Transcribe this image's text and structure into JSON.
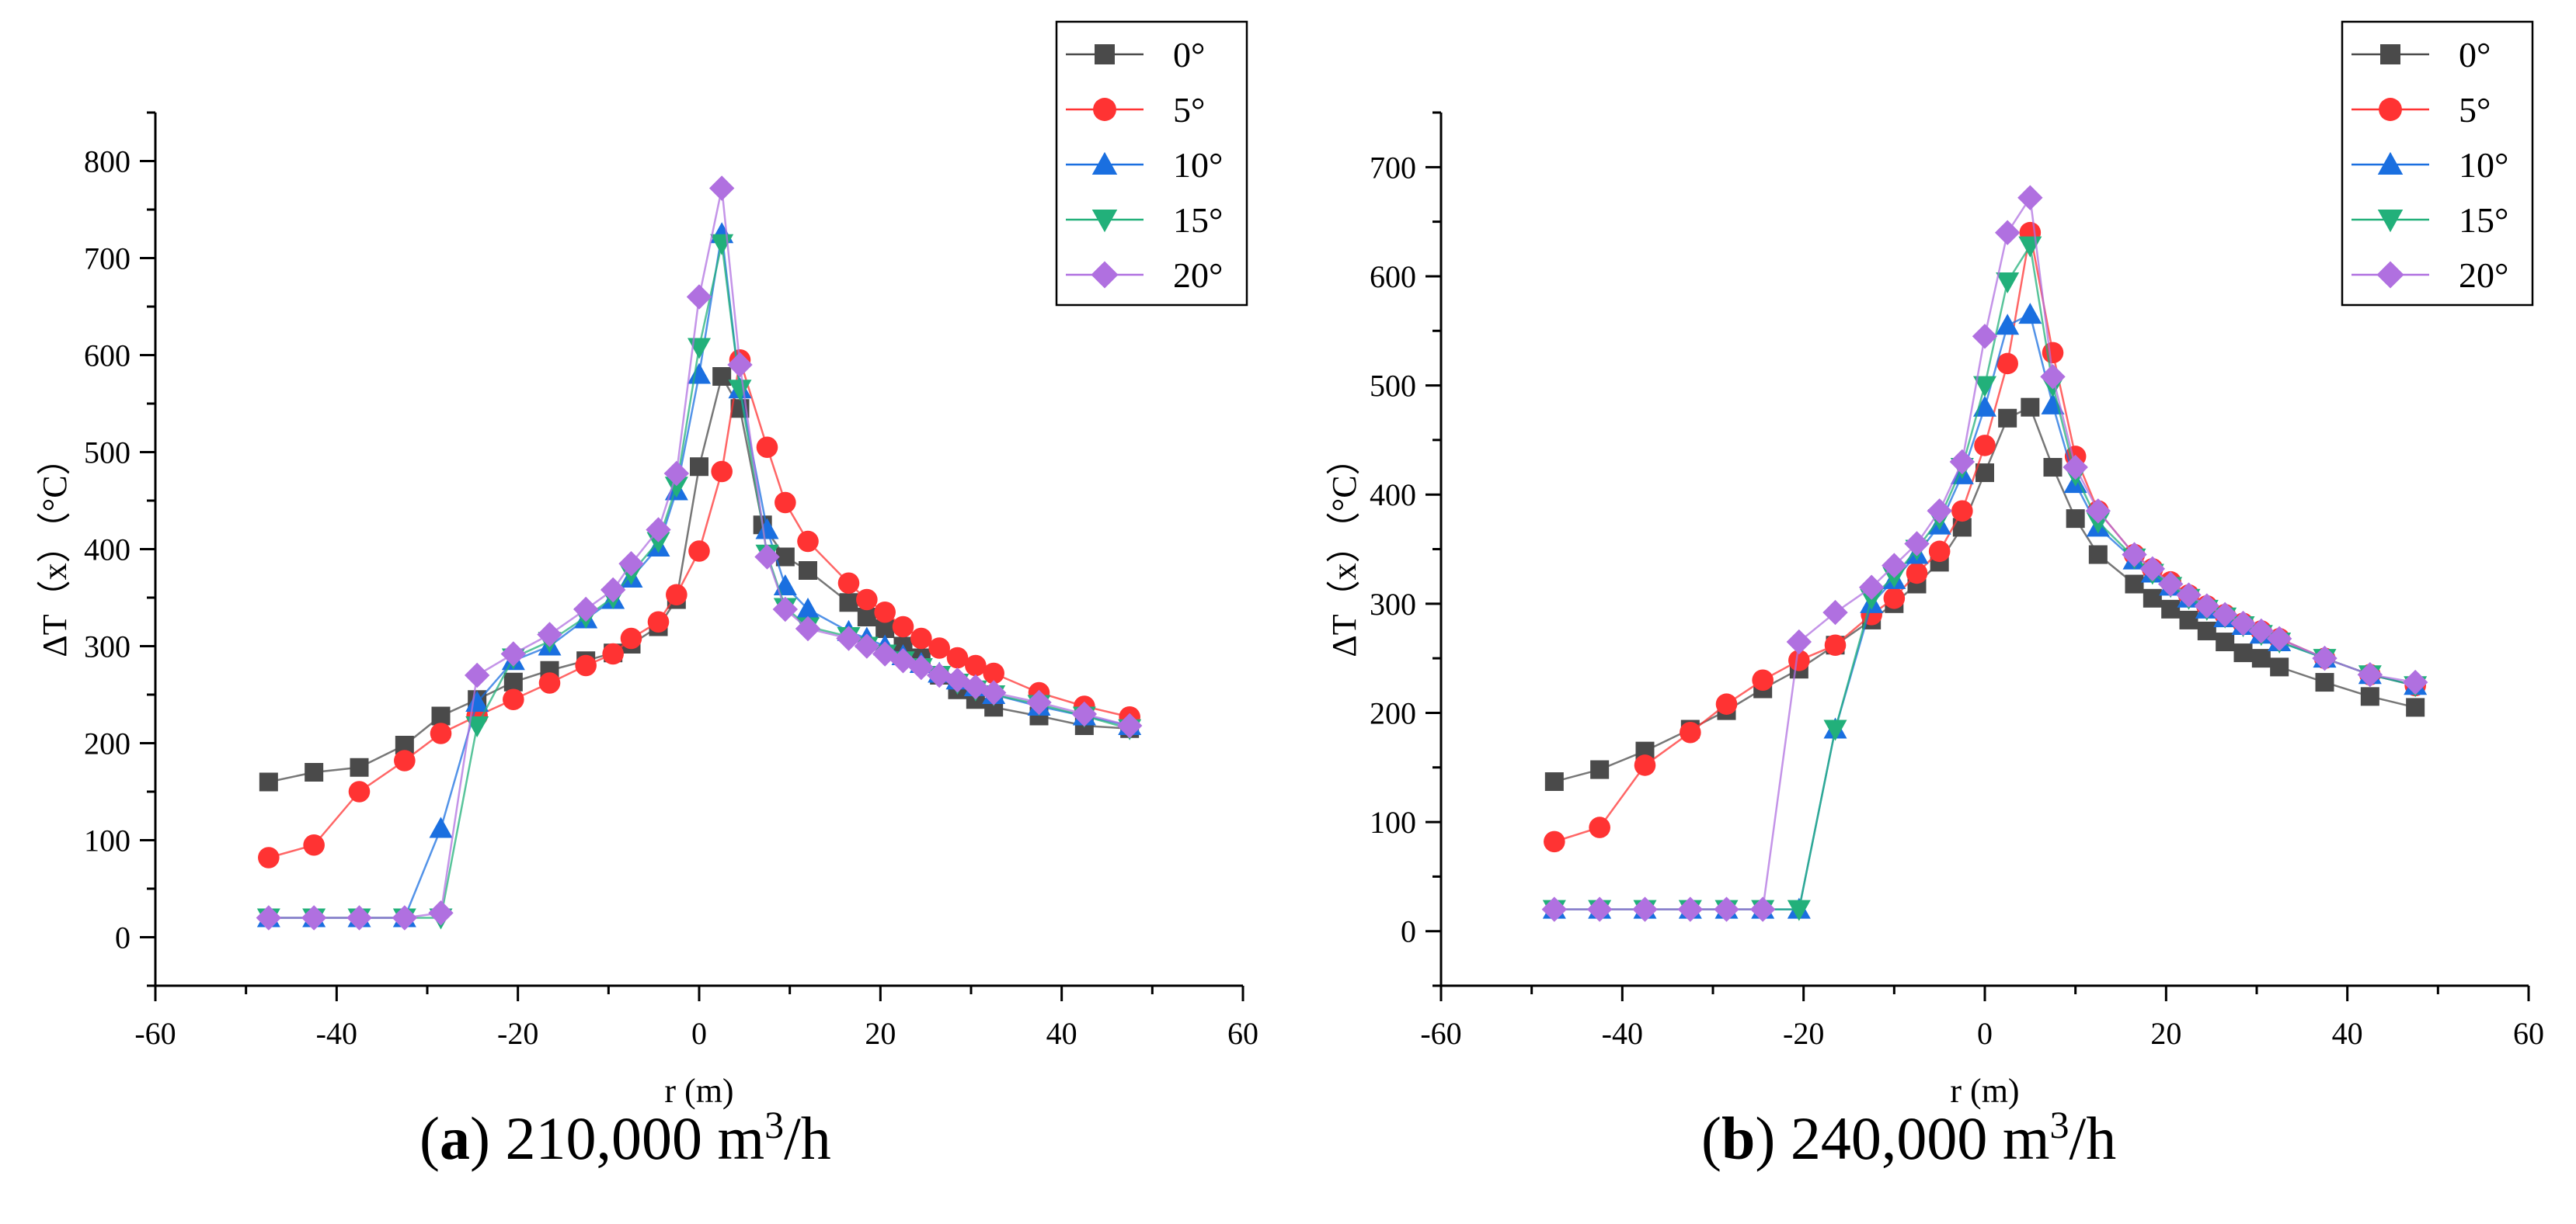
{
  "chart_data": [
    {
      "type": "scatter",
      "panel": "a",
      "title": "",
      "xlabel": "r (m)",
      "ylabel": "ΔT（x）（°C）",
      "xlim": [
        -60,
        60
      ],
      "ylim": [
        -50,
        850
      ],
      "xticks": [
        -60,
        -40,
        -20,
        0,
        20,
        40,
        60
      ],
      "yticks": [
        0,
        100,
        200,
        300,
        400,
        500,
        600,
        700,
        800
      ],
      "grid": false,
      "legend": "top-right",
      "series": [
        {
          "name": "0°",
          "color": "#4a4a4a",
          "marker": "square",
          "x": [
            -47.5,
            -42.5,
            -37.5,
            -32.5,
            -28.5,
            -24.5,
            -20.5,
            -16.5,
            -12.5,
            -9.5,
            -7.5,
            -4.5,
            -2.5,
            0,
            2.5,
            4.5,
            7,
            9.5,
            12,
            16.5,
            18.5,
            20.5,
            22.5,
            24.5,
            26.5,
            28.5,
            30.5,
            32.5,
            37.5,
            42.5,
            47.5
          ],
          "y": [
            160,
            170,
            175,
            198,
            228,
            245,
            263,
            275,
            285,
            293,
            302,
            320,
            348,
            485,
            578,
            545,
            425,
            392,
            378,
            345,
            330,
            318,
            300,
            288,
            270,
            255,
            245,
            237,
            228,
            218,
            215
          ]
        },
        {
          "name": "5°",
          "color": "#ff3333",
          "marker": "circle",
          "x": [
            -47.5,
            -42.5,
            -37.5,
            -32.5,
            -28.5,
            -24.5,
            -20.5,
            -16.5,
            -12.5,
            -9.5,
            -7.5,
            -4.5,
            -2.5,
            0,
            2.5,
            4.5,
            7.5,
            9.5,
            12,
            16.5,
            18.5,
            20.5,
            22.5,
            24.5,
            26.5,
            28.5,
            30.5,
            32.5,
            37.5,
            42.5,
            47.5
          ],
          "y": [
            82,
            95,
            150,
            182,
            210,
            228,
            245,
            262,
            280,
            292,
            308,
            325,
            353,
            398,
            480,
            595,
            505,
            448,
            408,
            365,
            348,
            335,
            320,
            308,
            298,
            288,
            280,
            272,
            252,
            238,
            227
          ]
        },
        {
          "name": "10°",
          "color": "#1a6fe0",
          "marker": "triangle-up",
          "x": [
            -47.5,
            -42.5,
            -37.5,
            -32.5,
            -28.5,
            -24.5,
            -20.5,
            -16.5,
            -12.5,
            -9.5,
            -7.5,
            -4.5,
            -2.5,
            0,
            2.5,
            4.5,
            7.5,
            9.5,
            12,
            16.5,
            18.5,
            20.5,
            22.5,
            24.5,
            26.5,
            28.5,
            30.5,
            32.5,
            37.5,
            42.5,
            47.5
          ],
          "y": [
            20,
            20,
            20,
            20,
            112,
            242,
            285,
            300,
            328,
            348,
            370,
            402,
            460,
            580,
            725,
            565,
            420,
            362,
            338,
            315,
            308,
            300,
            290,
            282,
            272,
            265,
            258,
            250,
            238,
            228,
            218
          ]
        },
        {
          "name": "15°",
          "color": "#22b07a",
          "marker": "triangle-down",
          "x": [
            -47.5,
            -42.5,
            -37.5,
            -32.5,
            -28.5,
            -24.5,
            -20.5,
            -16.5,
            -12.5,
            -9.5,
            -7.5,
            -4.5,
            -2.5,
            0,
            2.5,
            4.5,
            7.5,
            9.5,
            12,
            16.5,
            18.5,
            20.5,
            22.5,
            24.5,
            26.5,
            28.5,
            30.5,
            32.5,
            37.5,
            42.5,
            47.5
          ],
          "y": [
            20,
            20,
            20,
            20,
            20,
            218,
            288,
            305,
            330,
            350,
            375,
            408,
            465,
            608,
            715,
            565,
            395,
            340,
            320,
            310,
            300,
            292,
            285,
            278,
            270,
            262,
            255,
            250,
            240,
            228,
            215
          ]
        },
        {
          "name": "20°",
          "color": "#b070e0",
          "marker": "diamond",
          "x": [
            -47.5,
            -42.5,
            -37.5,
            -32.5,
            -28.5,
            -24.5,
            -20.5,
            -16.5,
            -12.5,
            -9.5,
            -7.5,
            -4.5,
            -2.5,
            0,
            2.5,
            4.5,
            7.5,
            9.5,
            12,
            16.5,
            18.5,
            20.5,
            22.5,
            24.5,
            26.5,
            28.5,
            30.5,
            32.5,
            37.5,
            42.5,
            47.5
          ],
          "y": [
            20,
            20,
            20,
            20,
            25,
            270,
            292,
            312,
            338,
            358,
            385,
            420,
            478,
            660,
            772,
            590,
            392,
            338,
            318,
            308,
            300,
            292,
            285,
            278,
            270,
            265,
            258,
            252,
            242,
            230,
            218
          ]
        }
      ]
    },
    {
      "type": "scatter",
      "panel": "b",
      "title": "",
      "xlabel": "r (m)",
      "ylabel": "ΔT（x）（°C）",
      "xlim": [
        -60,
        60
      ],
      "ylim": [
        -50,
        750
      ],
      "xticks": [
        -60,
        -40,
        -20,
        0,
        20,
        40,
        60
      ],
      "yticks": [
        0,
        100,
        200,
        300,
        400,
        500,
        600,
        700
      ],
      "grid": false,
      "legend": "top-right",
      "series": [
        {
          "name": "0°",
          "color": "#4a4a4a",
          "marker": "square",
          "x": [
            -47.5,
            -42.5,
            -37.5,
            -32.5,
            -28.5,
            -24.5,
            -20.5,
            -16.5,
            -12.5,
            -10,
            -7.5,
            -5,
            -2.5,
            0,
            2.5,
            5,
            7.5,
            10,
            12.5,
            16.5,
            18.5,
            20.5,
            22.5,
            24.5,
            26.5,
            28.5,
            30.5,
            32.5,
            37.5,
            42.5,
            47.5
          ],
          "y": [
            137,
            148,
            165,
            185,
            202,
            222,
            240,
            262,
            285,
            300,
            318,
            338,
            370,
            420,
            470,
            480,
            425,
            378,
            345,
            318,
            305,
            295,
            285,
            275,
            265,
            255,
            250,
            242,
            228,
            215,
            205
          ]
        },
        {
          "name": "5°",
          "color": "#ff3333",
          "marker": "circle",
          "x": [
            -47.5,
            -42.5,
            -37.5,
            -32.5,
            -28.5,
            -24.5,
            -20.5,
            -16.5,
            -12.5,
            -10,
            -7.5,
            -5,
            -2.5,
            0,
            2.5,
            5,
            7.5,
            10,
            12.5,
            16.5,
            18.5,
            20.5,
            22.5,
            24.5,
            26.5,
            28.5,
            30.5,
            32.5,
            37.5,
            42.5,
            47.5
          ],
          "y": [
            82,
            95,
            152,
            182,
            208,
            230,
            248,
            262,
            290,
            305,
            328,
            348,
            385,
            445,
            520,
            640,
            530,
            435,
            385,
            345,
            332,
            320,
            308,
            298,
            290,
            282,
            275,
            268,
            250,
            235,
            225
          ]
        },
        {
          "name": "10°",
          "color": "#1a6fe0",
          "marker": "triangle-up",
          "x": [
            -47.5,
            -42.5,
            -37.5,
            -32.5,
            -28.5,
            -24.5,
            -20.5,
            -16.5,
            -12.5,
            -10,
            -7.5,
            -5,
            -2.5,
            0,
            2.5,
            5,
            7.5,
            10,
            12.5,
            16.5,
            18.5,
            20.5,
            22.5,
            24.5,
            26.5,
            28.5,
            30.5,
            32.5,
            37.5,
            42.5,
            47.5
          ],
          "y": [
            20,
            20,
            20,
            20,
            20,
            20,
            20,
            185,
            300,
            322,
            345,
            372,
            418,
            480,
            555,
            565,
            482,
            410,
            370,
            340,
            328,
            316,
            305,
            295,
            287,
            280,
            272,
            265,
            250,
            235,
            225
          ]
        },
        {
          "name": "15°",
          "color": "#22b07a",
          "marker": "triangle-down",
          "x": [
            -47.5,
            -42.5,
            -37.5,
            -32.5,
            -28.5,
            -24.5,
            -20.5,
            -16.5,
            -12.5,
            -10,
            -7.5,
            -5,
            -2.5,
            0,
            2.5,
            5,
            7.5,
            10,
            12.5,
            16.5,
            18.5,
            20.5,
            22.5,
            24.5,
            26.5,
            28.5,
            30.5,
            32.5,
            37.5,
            42.5,
            47.5
          ],
          "y": [
            20,
            20,
            20,
            20,
            20,
            20,
            20,
            185,
            305,
            325,
            350,
            378,
            425,
            500,
            595,
            628,
            500,
            418,
            375,
            342,
            328,
            316,
            305,
            295,
            288,
            280,
            272,
            265,
            250,
            235,
            225
          ]
        },
        {
          "name": "20°",
          "color": "#b070e0",
          "marker": "diamond",
          "x": [
            -47.5,
            -42.5,
            -37.5,
            -32.5,
            -28.5,
            -24.5,
            -20.5,
            -16.5,
            -12.5,
            -10,
            -7.5,
            -5,
            -2.5,
            0,
            2.5,
            5,
            7.5,
            10,
            12.5,
            16.5,
            18.5,
            20.5,
            22.5,
            24.5,
            26.5,
            28.5,
            30.5,
            32.5,
            37.5,
            42.5,
            47.5
          ],
          "y": [
            20,
            20,
            20,
            20,
            20,
            20,
            265,
            292,
            315,
            335,
            355,
            385,
            430,
            545,
            640,
            672,
            508,
            425,
            385,
            345,
            332,
            318,
            308,
            298,
            290,
            282,
            275,
            268,
            250,
            235,
            228
          ]
        }
      ]
    }
  ],
  "captions": {
    "a_letter": "a",
    "a_text": ") 210,000 m",
    "a_sup": "3",
    "a_unit": "/h",
    "b_letter": "b",
    "b_text": ") 240,000 m",
    "b_sup": "3",
    "b_unit": "/h"
  }
}
